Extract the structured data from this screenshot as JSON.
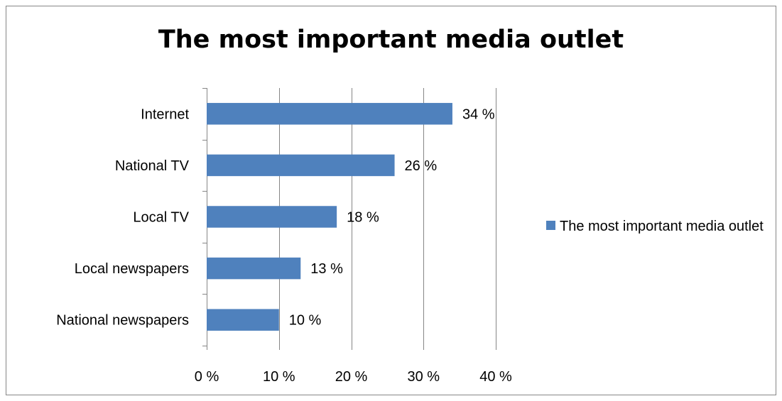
{
  "chart_data": {
    "type": "bar",
    "orientation": "horizontal",
    "title": "The most important media outlet",
    "categories": [
      "National newspapers",
      "Local newspapers",
      "Local TV",
      "National TV",
      "Internet"
    ],
    "series": [
      {
        "name": "The most important media outlet",
        "values": [
          10,
          13,
          18,
          26,
          34
        ],
        "data_labels": [
          "10 %",
          "13 %",
          "18 %",
          "26 %",
          "34 %"
        ],
        "color": "#4f81bd"
      }
    ],
    "xlim": [
      0,
      40
    ],
    "x_ticks": [
      0,
      10,
      20,
      30,
      40
    ],
    "x_tick_labels": [
      "0 %",
      "10 %",
      "20 %",
      "30 %",
      "40 %"
    ],
    "xlabel": "",
    "ylabel": "",
    "grid": "vertical",
    "legend_position": "right"
  }
}
